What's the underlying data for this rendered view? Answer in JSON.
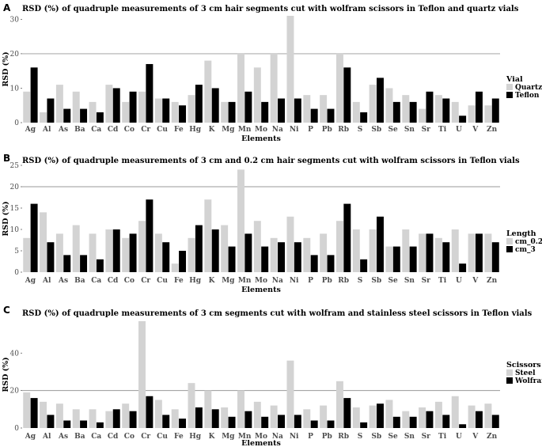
{
  "chart_data": [
    {
      "type": "bar",
      "panel": "A",
      "title": "RSD (%) of quadruple measurements of 3 cm hair segments cut with wolfram scissors in Teflon and quartz vials",
      "xlabel": "Elements",
      "ylabel": "RSD (%)",
      "ylim": [
        0,
        31
      ],
      "yticks": [
        0,
        10,
        20,
        30
      ],
      "reference_line": 20,
      "legend_title": "Vial",
      "legend_position": "right",
      "categories": [
        "Ag",
        "Al",
        "As",
        "Ba",
        "Ca",
        "Cd",
        "Co",
        "Cr",
        "Cu",
        "Fe",
        "Hg",
        "K",
        "Mg",
        "Mn",
        "Mo",
        "Na",
        "Ni",
        "P",
        "Pb",
        "Rb",
        "S",
        "Sb",
        "Se",
        "Sn",
        "Sr",
        "Ti",
        "U",
        "V",
        "Zn"
      ],
      "series": [
        {
          "name": "Quartz",
          "color": "#d3d3d3",
          "values": [
            9,
            3,
            11,
            9,
            6,
            11,
            6,
            9,
            7,
            6,
            8,
            18,
            6,
            20,
            16,
            20,
            31,
            8,
            8,
            20,
            6,
            11,
            10,
            8,
            4,
            8,
            6,
            5,
            5
          ]
        },
        {
          "name": "Teflon",
          "color": "#000000",
          "values": [
            16,
            7,
            4,
            4,
            3,
            10,
            9,
            17,
            7,
            5,
            11,
            10,
            6,
            9,
            6,
            7,
            7,
            4,
            4,
            16,
            3,
            13,
            6,
            6,
            9,
            7,
            2,
            9,
            7
          ]
        }
      ]
    },
    {
      "type": "bar",
      "panel": "B",
      "title": "RSD (%) of quadruple measurements of 3 cm and 0.2 cm hair segments cut with wolfram scissors in Teflon vials",
      "xlabel": "Elements",
      "ylabel": "RSD (%)",
      "ylim": [
        0,
        25
      ],
      "yticks": [
        0,
        5,
        10,
        15,
        20,
        25
      ],
      "reference_line": 20,
      "legend_title": "Length",
      "legend_position": "right",
      "categories": [
        "Ag",
        "Al",
        "As",
        "Ba",
        "Ca",
        "Cd",
        "Co",
        "Cr",
        "Cu",
        "Fe",
        "Hg",
        "K",
        "Mg",
        "Mn",
        "Mo",
        "Na",
        "Ni",
        "P",
        "Pb",
        "Rb",
        "S",
        "Sb",
        "Se",
        "Sn",
        "Sr",
        "Ti",
        "U",
        "V",
        "Zn"
      ],
      "series": [
        {
          "name": "cm_0.2",
          "color": "#d3d3d3",
          "values": [
            8,
            14,
            9,
            11,
            9,
            10,
            8,
            12,
            9,
            2,
            8,
            17,
            11,
            24,
            12,
            8,
            13,
            8,
            9,
            12,
            10,
            10,
            6,
            10,
            9,
            8,
            10,
            9,
            9
          ]
        },
        {
          "name": "cm_3",
          "color": "#000000",
          "values": [
            16,
            7,
            4,
            4,
            3,
            10,
            9,
            17,
            7,
            5,
            11,
            10,
            6,
            9,
            6,
            7,
            7,
            4,
            4,
            16,
            3,
            13,
            6,
            6,
            9,
            7,
            2,
            9,
            7
          ]
        }
      ]
    },
    {
      "type": "bar",
      "panel": "C",
      "title": "RSD (%) of quadruple measurements of 3 cm segments cut with wolfram and stainless steel scissors in Teflon vials",
      "xlabel": "Elements",
      "ylabel": "RSD (%)",
      "ylim": [
        0,
        57
      ],
      "yticks": [
        0,
        20,
        40
      ],
      "reference_line": 20,
      "legend_title": "Scissors",
      "legend_position": "right",
      "categories": [
        "Ag",
        "Al",
        "As",
        "Ba",
        "Ca",
        "Cd",
        "Co",
        "Cr",
        "Cu",
        "Fe",
        "Hg",
        "K",
        "Mg",
        "Mn",
        "Mo",
        "Na",
        "Ni",
        "P",
        "Pb",
        "Rb",
        "S",
        "Sb",
        "Se",
        "Sn",
        "Sr",
        "Ti",
        "U",
        "V",
        "Zn"
      ],
      "series": [
        {
          "name": "Steel",
          "color": "#d3d3d3",
          "values": [
            19,
            14,
            13,
            10,
            10,
            9,
            13,
            57,
            15,
            10,
            24,
            20,
            11,
            20,
            14,
            12,
            36,
            10,
            12,
            25,
            11,
            12,
            15,
            9,
            11,
            14,
            17,
            12,
            13
          ]
        },
        {
          "name": "Wolfram",
          "color": "#000000",
          "values": [
            16,
            7,
            4,
            4,
            3,
            10,
            9,
            17,
            7,
            5,
            11,
            10,
            6,
            9,
            6,
            7,
            7,
            4,
            4,
            16,
            3,
            13,
            6,
            6,
            9,
            7,
            2,
            9,
            7
          ]
        }
      ]
    }
  ]
}
